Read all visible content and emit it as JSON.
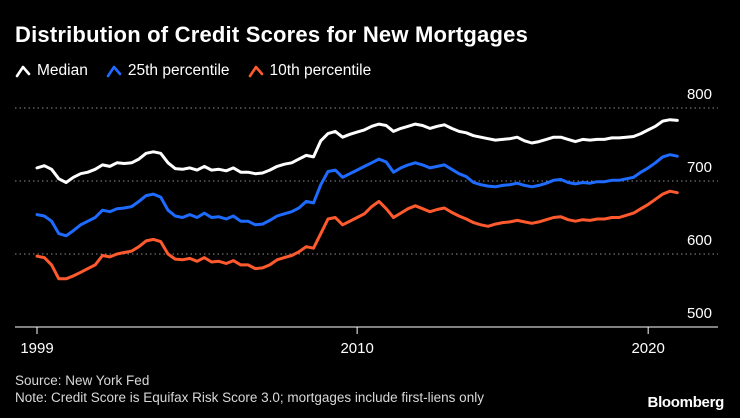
{
  "title": "Distribution of Credit Scores for New Mortgages",
  "source": "Source: New York Fed",
  "note": "Note: Credit Score is Equifax Risk Score 3.0; mortgages include first-liens only",
  "brand": "Bloomberg",
  "colors": {
    "background": "#000000",
    "median": "#ffffff",
    "p25": "#1e6bff",
    "p10": "#ff5a2e",
    "grid": "#8a8a8a",
    "axis": "#ffffff"
  },
  "chart_data": {
    "type": "line",
    "title": "Distribution of Credit Scores for New Mortgages",
    "xlabel": "",
    "ylabel": "",
    "xlim": [
      1999,
      2021.3
    ],
    "ylim": [
      500,
      800
    ],
    "y_ticks": [
      "500",
      "600",
      "700",
      "800"
    ],
    "x_ticks": [
      "1999",
      "2010",
      "2020"
    ],
    "x_tick_values": [
      1999,
      2010,
      2020
    ],
    "y_tick_values": [
      500,
      600,
      700,
      800
    ],
    "grid": true,
    "legend_position": "top-left",
    "series": [
      {
        "name": "Median",
        "key": "median",
        "x": [
          1999.0,
          1999.25,
          1999.5,
          1999.75,
          2000.0,
          2000.25,
          2000.5,
          2000.75,
          2001.0,
          2001.25,
          2001.5,
          2001.75,
          2002.0,
          2002.25,
          2002.5,
          2002.75,
          2003.0,
          2003.25,
          2003.5,
          2003.75,
          2004.0,
          2004.25,
          2004.5,
          2004.75,
          2005.0,
          2005.25,
          2005.5,
          2005.75,
          2006.0,
          2006.25,
          2006.5,
          2006.75,
          2007.0,
          2007.25,
          2007.5,
          2007.75,
          2008.0,
          2008.25,
          2008.5,
          2008.75,
          2009.0,
          2009.25,
          2009.5,
          2009.75,
          2010.0,
          2010.25,
          2010.5,
          2010.75,
          2011.0,
          2011.25,
          2011.5,
          2011.75,
          2012.0,
          2012.25,
          2012.5,
          2012.75,
          2013.0,
          2013.25,
          2013.5,
          2013.75,
          2014.0,
          2014.25,
          2014.5,
          2014.75,
          2015.0,
          2015.25,
          2015.5,
          2015.75,
          2016.0,
          2016.25,
          2016.5,
          2016.75,
          2017.0,
          2017.25,
          2017.5,
          2017.75,
          2018.0,
          2018.25,
          2018.5,
          2018.75,
          2019.0,
          2019.25,
          2019.5,
          2019.75,
          2020.0,
          2020.25,
          2020.5,
          2020.75,
          2021.0
        ],
        "values": [
          718,
          721,
          716,
          703,
          698,
          705,
          710,
          712,
          716,
          722,
          720,
          725,
          724,
          725,
          730,
          738,
          740,
          738,
          725,
          717,
          716,
          718,
          715,
          720,
          715,
          716,
          714,
          718,
          712,
          712,
          710,
          711,
          715,
          720,
          723,
          725,
          730,
          735,
          733,
          755,
          765,
          768,
          760,
          764,
          767,
          770,
          775,
          778,
          776,
          768,
          772,
          775,
          778,
          776,
          772,
          775,
          777,
          772,
          768,
          766,
          762,
          760,
          758,
          756,
          757,
          758,
          760,
          755,
          752,
          754,
          757,
          760,
          760,
          757,
          754,
          757,
          756,
          757,
          757,
          759,
          759,
          760,
          761,
          765,
          770,
          775,
          782,
          784,
          783
        ]
      },
      {
        "name": "25th percentile",
        "key": "p25",
        "x": [
          1999.0,
          1999.25,
          1999.5,
          1999.75,
          2000.0,
          2000.25,
          2000.5,
          2000.75,
          2001.0,
          2001.25,
          2001.5,
          2001.75,
          2002.0,
          2002.25,
          2002.5,
          2002.75,
          2003.0,
          2003.25,
          2003.5,
          2003.75,
          2004.0,
          2004.25,
          2004.5,
          2004.75,
          2005.0,
          2005.25,
          2005.5,
          2005.75,
          2006.0,
          2006.25,
          2006.5,
          2006.75,
          2007.0,
          2007.25,
          2007.5,
          2007.75,
          2008.0,
          2008.25,
          2008.5,
          2008.75,
          2009.0,
          2009.25,
          2009.5,
          2009.75,
          2010.0,
          2010.25,
          2010.5,
          2010.75,
          2011.0,
          2011.25,
          2011.5,
          2011.75,
          2012.0,
          2012.25,
          2012.5,
          2012.75,
          2013.0,
          2013.25,
          2013.5,
          2013.75,
          2014.0,
          2014.25,
          2014.5,
          2014.75,
          2015.0,
          2015.25,
          2015.5,
          2015.75,
          2016.0,
          2016.25,
          2016.5,
          2016.75,
          2017.0,
          2017.25,
          2017.5,
          2017.75,
          2018.0,
          2018.25,
          2018.5,
          2018.75,
          2019.0,
          2019.25,
          2019.5,
          2019.75,
          2020.0,
          2020.25,
          2020.5,
          2020.75,
          2021.0
        ],
        "values": [
          654,
          652,
          645,
          628,
          625,
          632,
          640,
          645,
          650,
          660,
          658,
          662,
          663,
          665,
          672,
          680,
          682,
          678,
          660,
          652,
          650,
          654,
          650,
          656,
          650,
          651,
          648,
          652,
          645,
          645,
          640,
          641,
          646,
          652,
          655,
          658,
          663,
          672,
          670,
          695,
          713,
          715,
          705,
          710,
          715,
          720,
          725,
          730,
          726,
          712,
          718,
          722,
          725,
          722,
          718,
          720,
          722,
          716,
          710,
          706,
          698,
          695,
          693,
          692,
          694,
          695,
          697,
          694,
          692,
          694,
          697,
          701,
          702,
          698,
          696,
          698,
          697,
          699,
          699,
          701,
          701,
          703,
          705,
          712,
          718,
          725,
          733,
          736,
          734
        ]
      },
      {
        "name": "10th percentile",
        "key": "p10",
        "x": [
          1999.0,
          1999.25,
          1999.5,
          1999.75,
          2000.0,
          2000.25,
          2000.5,
          2000.75,
          2001.0,
          2001.25,
          2001.5,
          2001.75,
          2002.0,
          2002.25,
          2002.5,
          2002.75,
          2003.0,
          2003.25,
          2003.5,
          2003.75,
          2004.0,
          2004.25,
          2004.5,
          2004.75,
          2005.0,
          2005.25,
          2005.5,
          2005.75,
          2006.0,
          2006.25,
          2006.5,
          2006.75,
          2007.0,
          2007.25,
          2007.5,
          2007.75,
          2008.0,
          2008.25,
          2008.5,
          2008.75,
          2009.0,
          2009.25,
          2009.5,
          2009.75,
          2010.0,
          2010.25,
          2010.5,
          2010.75,
          2011.0,
          2011.25,
          2011.5,
          2011.75,
          2012.0,
          2012.25,
          2012.5,
          2012.75,
          2013.0,
          2013.25,
          2013.5,
          2013.75,
          2014.0,
          2014.25,
          2014.5,
          2014.75,
          2015.0,
          2015.25,
          2015.5,
          2015.75,
          2016.0,
          2016.25,
          2016.5,
          2016.75,
          2017.0,
          2017.25,
          2017.5,
          2017.75,
          2018.0,
          2018.25,
          2018.5,
          2018.75,
          2019.0,
          2019.25,
          2019.5,
          2019.75,
          2020.0,
          2020.25,
          2020.5,
          2020.75,
          2021.0
        ],
        "values": [
          597,
          595,
          585,
          566,
          566,
          570,
          575,
          580,
          585,
          598,
          596,
          600,
          602,
          604,
          610,
          618,
          620,
          617,
          600,
          593,
          592,
          594,
          590,
          595,
          589,
          590,
          587,
          591,
          585,
          585,
          580,
          581,
          585,
          592,
          595,
          598,
          603,
          610,
          608,
          628,
          648,
          650,
          640,
          645,
          650,
          655,
          665,
          672,
          662,
          650,
          656,
          662,
          666,
          662,
          658,
          661,
          663,
          657,
          652,
          648,
          643,
          640,
          638,
          641,
          643,
          644,
          646,
          644,
          642,
          644,
          647,
          650,
          651,
          647,
          645,
          647,
          646,
          648,
          648,
          650,
          650,
          653,
          656,
          662,
          668,
          675,
          682,
          686,
          684
        ]
      }
    ]
  }
}
